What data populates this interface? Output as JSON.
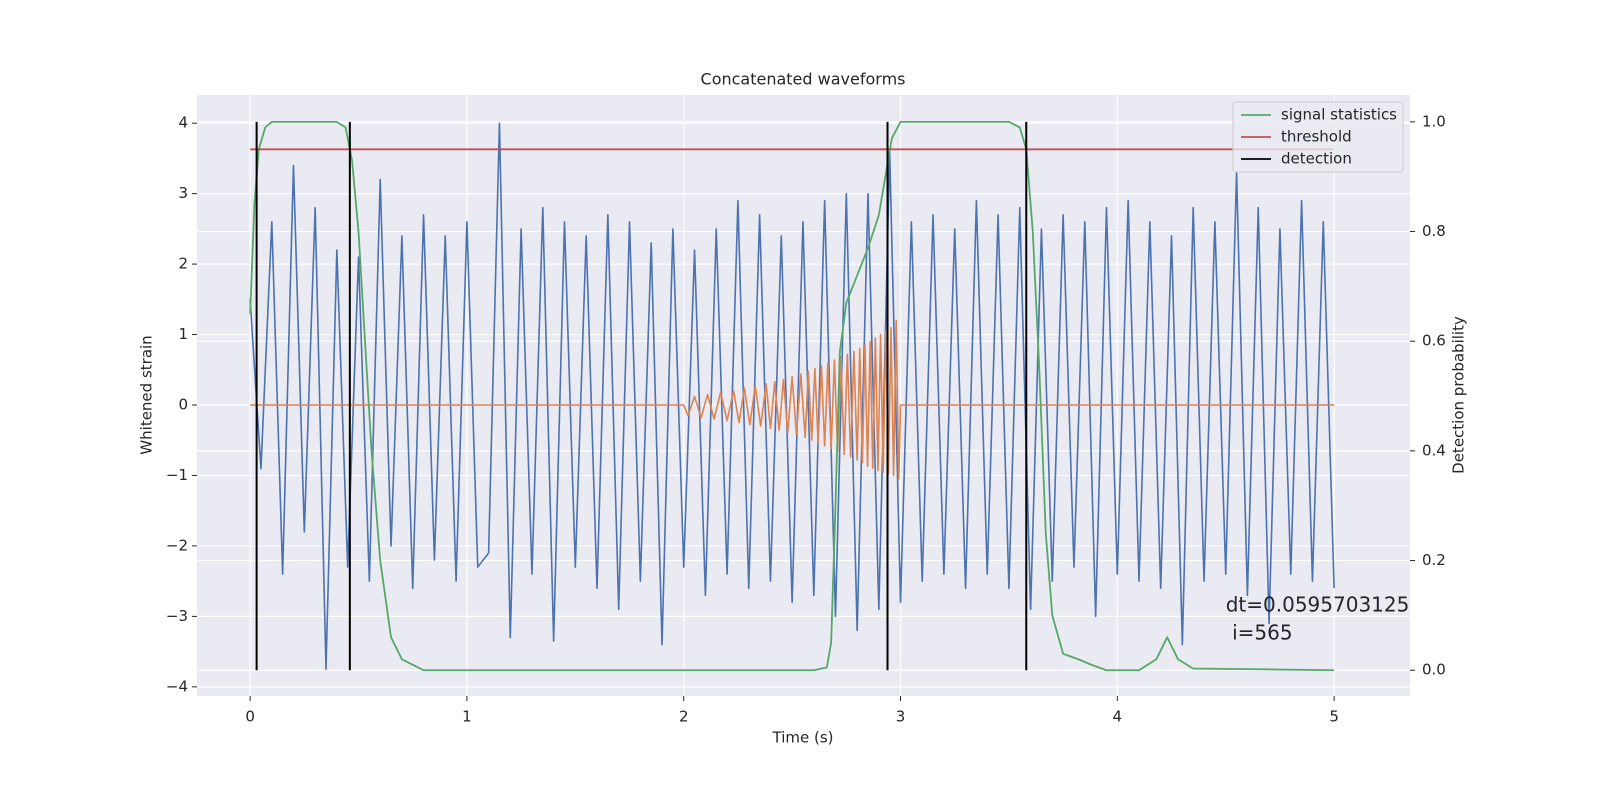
{
  "chart_data": {
    "type": "line",
    "title": "Concatenated waveforms",
    "xlabel": "Time (s)",
    "ylabel": "Whitened strain",
    "y2label": "Detection probability",
    "xlim": [
      -0.245,
      5.35
    ],
    "ylim": [
      -4.13,
      4.4
    ],
    "y2lim": [
      -0.047,
      1.049
    ],
    "xticks": [
      0,
      1,
      2,
      3,
      4,
      5
    ],
    "yticks": [
      {
        "value": -4,
        "label": "−4"
      },
      {
        "value": -3,
        "label": "−3"
      },
      {
        "value": -2,
        "label": "−2"
      },
      {
        "value": -1,
        "label": "−1"
      },
      0,
      1,
      2,
      3,
      4
    ],
    "y2ticks": [
      {
        "value": 0,
        "label": "0.0"
      },
      0.2,
      0.4,
      0.6,
      0.8,
      {
        "value": 1,
        "label": "1.0"
      }
    ],
    "grid": true,
    "background": "#eaeaf2",
    "legend": "upper right",
    "annotation": [
      "dt=0.0595703125",
      " i=565"
    ],
    "annotation_at": [
      4.5,
      -2.85
    ],
    "series": [
      {
        "color": "#4c72b0",
        "x": [
          0,
          0.05,
          0.1,
          0.15,
          0.2,
          0.25,
          0.3,
          0.35,
          0.4,
          0.45,
          0.5,
          0.55,
          0.6,
          0.65,
          0.7,
          0.75,
          0.8,
          0.85,
          0.9,
          0.95,
          1.0,
          1.05,
          1.1,
          1.15,
          1.2,
          1.25,
          1.3,
          1.35,
          1.4,
          1.45,
          1.5,
          1.55,
          1.6,
          1.65,
          1.7,
          1.75,
          1.8,
          1.85,
          1.9,
          1.95,
          2.0,
          2.05,
          2.1,
          2.15,
          2.2,
          2.25,
          2.3,
          2.35,
          2.4,
          2.45,
          2.5,
          2.55,
          2.6,
          2.65,
          2.7,
          2.75,
          2.8,
          2.85,
          2.9,
          2.95,
          3.0,
          3.05,
          3.1,
          3.15,
          3.2,
          3.25,
          3.3,
          3.35,
          3.4,
          3.45,
          3.5,
          3.55,
          3.6,
          3.65,
          3.7,
          3.75,
          3.8,
          3.85,
          3.9,
          3.95,
          4.0,
          4.05,
          4.1,
          4.15,
          4.2,
          4.25,
          4.3,
          4.35,
          4.4,
          4.45,
          4.5,
          4.55,
          4.6,
          4.65,
          4.7,
          4.75,
          4.8,
          4.85,
          4.9,
          4.95,
          5.0
        ],
        "values": [
          1.5,
          -0.9,
          2.6,
          -2.4,
          3.4,
          -1.8,
          2.8,
          -3.75,
          2.2,
          -2.3,
          2.1,
          -2.5,
          3.2,
          -2.0,
          2.4,
          -2.6,
          2.7,
          -2.2,
          2.4,
          -2.5,
          2.6,
          -2.3,
          -2.1,
          4.0,
          -3.3,
          2.5,
          -2.4,
          2.8,
          -3.35,
          2.6,
          -2.3,
          2.4,
          -2.6,
          2.7,
          -2.9,
          2.6,
          -2.5,
          2.3,
          -3.4,
          2.5,
          -2.3,
          2.2,
          -2.7,
          2.5,
          -2.4,
          2.9,
          -2.6,
          2.7,
          -2.5,
          2.4,
          -2.8,
          2.6,
          -2.7,
          2.9,
          -3.0,
          3.0,
          -3.2,
          3.0,
          -2.9,
          3.6,
          -2.8,
          2.6,
          -2.5,
          2.7,
          -2.4,
          2.5,
          -2.6,
          2.9,
          -2.4,
          2.7,
          -2.6,
          2.8,
          -2.9,
          2.5,
          -2.5,
          2.7,
          -2.3,
          2.6,
          -3.0,
          2.8,
          -2.4,
          2.9,
          -2.5,
          2.6,
          -2.6,
          2.4,
          -3.4,
          2.8,
          -2.5,
          2.6,
          -2.4,
          3.3,
          -2.7,
          2.8,
          -3.1,
          2.5,
          -2.4,
          2.9,
          -2.5,
          2.6,
          -2.6
        ]
      },
      {
        "color": "#dd8452",
        "x": [
          0,
          2.0,
          2.02,
          2.05,
          2.08,
          2.11,
          2.14,
          2.17,
          2.2,
          2.23,
          2.255,
          2.28,
          2.305,
          2.33,
          2.355,
          2.38,
          2.4,
          2.42,
          2.44,
          2.46,
          2.48,
          2.5,
          2.52,
          2.54,
          2.56,
          2.575,
          2.59,
          2.605,
          2.62,
          2.635,
          2.65,
          2.665,
          2.68,
          2.695,
          2.71,
          2.725,
          2.74,
          2.755,
          2.77,
          2.785,
          2.8,
          2.812,
          2.824,
          2.836,
          2.848,
          2.86,
          2.872,
          2.884,
          2.896,
          2.908,
          2.92,
          2.932,
          2.944,
          2.956,
          2.968,
          2.98,
          2.992,
          3.0,
          5.0
        ],
        "values": [
          0,
          0,
          -0.15,
          0.12,
          -0.18,
          0.15,
          -0.2,
          0.18,
          -0.22,
          0.2,
          -0.25,
          0.24,
          -0.28,
          0.27,
          -0.3,
          0.3,
          -0.33,
          0.33,
          -0.36,
          0.36,
          -0.39,
          0.4,
          -0.42,
          0.44,
          -0.46,
          0.48,
          -0.5,
          0.52,
          -0.54,
          0.56,
          -0.58,
          0.6,
          -0.62,
          0.64,
          -0.66,
          0.68,
          -0.7,
          0.72,
          -0.74,
          0.76,
          -0.78,
          0.8,
          -0.82,
          0.85,
          -0.87,
          0.9,
          -0.9,
          0.95,
          -0.93,
          1.0,
          -0.95,
          1.05,
          -0.98,
          1.1,
          -1.0,
          1.2,
          -1.05,
          0,
          0
        ]
      },
      {
        "name": "signal statistics",
        "color": "#55a868",
        "axis": "y2",
        "x": [
          0,
          0.02,
          0.04,
          0.07,
          0.1,
          0.2,
          0.4,
          0.44,
          0.47,
          0.5,
          0.53,
          0.56,
          0.6,
          0.65,
          0.7,
          0.8,
          1.5,
          2.6,
          2.66,
          2.68,
          2.7,
          2.72,
          2.75,
          2.8,
          2.85,
          2.9,
          2.93,
          2.96,
          3.0,
          3.5,
          3.55,
          3.58,
          3.61,
          3.64,
          3.67,
          3.7,
          3.75,
          3.82,
          3.88,
          3.95,
          4.1,
          4.18,
          4.23,
          4.28,
          4.35,
          4.6,
          5.0
        ],
        "values": [
          0.65,
          0.85,
          0.95,
          0.99,
          1.0,
          1.0,
          1.0,
          0.99,
          0.93,
          0.8,
          0.6,
          0.4,
          0.2,
          0.06,
          0.02,
          0.0,
          0.0,
          0.0,
          0.005,
          0.05,
          0.3,
          0.58,
          0.67,
          0.72,
          0.77,
          0.83,
          0.9,
          0.97,
          1.0,
          1.0,
          0.99,
          0.95,
          0.8,
          0.55,
          0.25,
          0.1,
          0.03,
          0.02,
          0.01,
          0.0,
          0.0,
          0.02,
          0.06,
          0.02,
          0.003,
          0.002,
          0.0
        ]
      },
      {
        "name": "threshold",
        "color": "#c44e52",
        "axis": "y2",
        "x": [
          0,
          5
        ],
        "values": [
          0.95,
          0.95
        ]
      },
      {
        "name": "detection",
        "color": "#000000",
        "axis": "y2",
        "mark": "vline",
        "x": [
          0.03,
          0.46,
          2.94,
          3.58
        ],
        "ymin": 0,
        "ymax": 1
      }
    ]
  }
}
